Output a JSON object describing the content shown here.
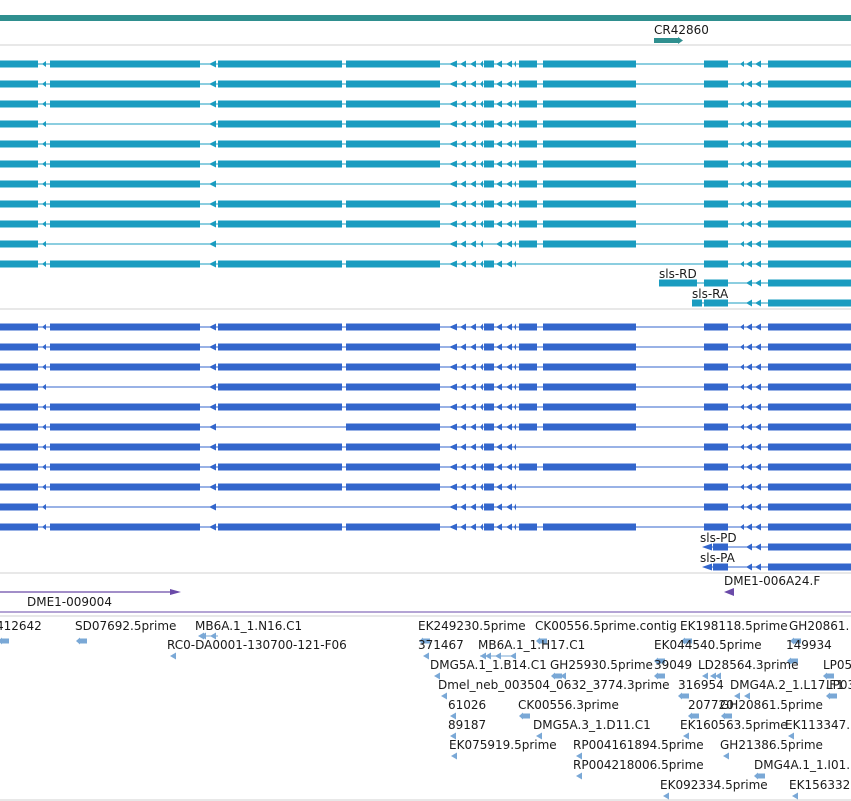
{
  "colors": {
    "top_bar": "#2f8f8f",
    "cr_gene": "#2f8f8f",
    "rna": "#1a9cc0",
    "protein": "#3366cc",
    "insertion": "#6a4aa8",
    "est": "#7aa8d6",
    "divider": "#d0d0d0"
  },
  "gene_track": {
    "label": "CR42860"
  },
  "rna_track": {
    "labels": [
      "sls-RD",
      "sls-RA"
    ]
  },
  "protein_track": {
    "labels": [
      "sls-PD",
      "sls-PA"
    ]
  },
  "insertion_track": {
    "labels": [
      "DME1-009004",
      "DME1-006A24.F"
    ]
  },
  "est_track": {
    "labels": [
      "412642",
      "SD07692.5prime",
      "MB6A.1_1.N16.C1",
      "RC0-DA0001-130700-121-F06",
      "EK249230.5prime",
      "CK00556.5prime.contig",
      "EK198118.5prime",
      "GH20861.",
      "371467",
      "MB6A.1_1.H17.C1",
      "EK044540.5prime",
      "149934",
      "DMG5A.1_1.B14.C1",
      "GH25930.5prime",
      "39049",
      "LD28564.3prime",
      "LP05",
      "Dmel_neb_003504_0632_3774.3prime",
      "316954",
      "DMG4A.2_1.L17.F1",
      "LP03",
      "61026",
      "CK00556.3prime",
      "207720",
      "GH20861.5prime",
      "89187",
      "DMG5A.3_1.D11.C1",
      "EK160563.5prime",
      "EK113347.",
      "EK075919.5prime",
      "RP004161894.5prime",
      "GH21386.5prime",
      "RP004218006.5prime",
      "DMG4A.1_1.I01.",
      "EK092334.5prime",
      "EK156332"
    ]
  }
}
